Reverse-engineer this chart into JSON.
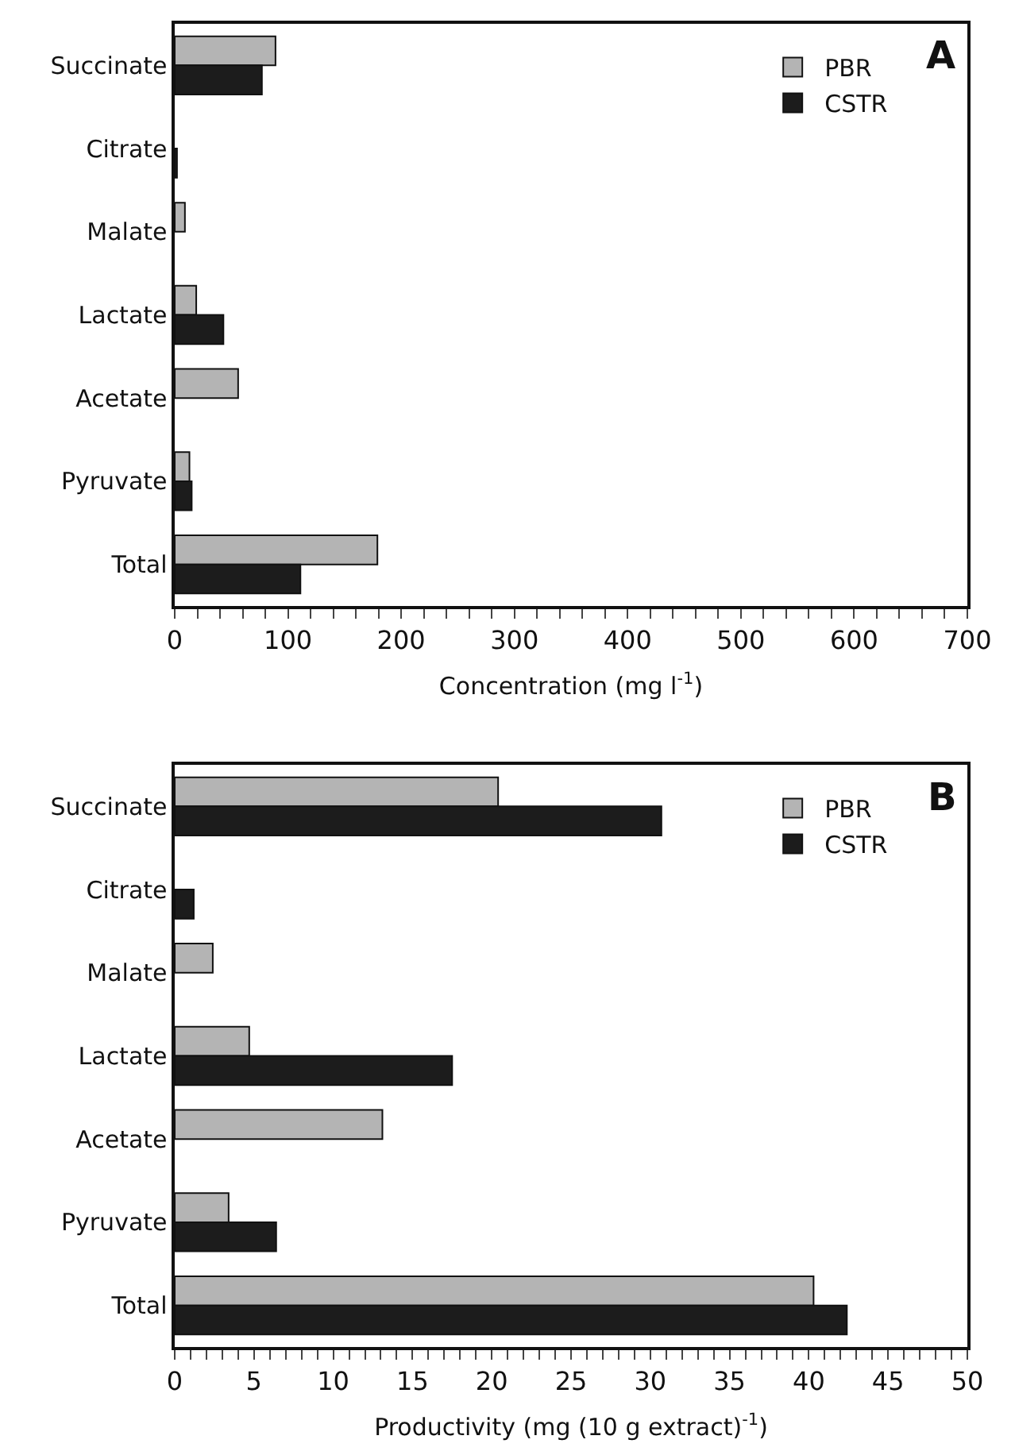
{
  "chart_data": [
    {
      "type": "bar",
      "orientation": "horizontal",
      "categories": [
        "Succinate",
        "Citrate",
        "Malate",
        "Lactate",
        "Acetate",
        "Pyruvate",
        "Total"
      ],
      "series": [
        {
          "name": "PBR",
          "color": "#b4b4b4",
          "values": [
            89,
            null,
            9,
            19,
            56,
            13,
            179
          ]
        },
        {
          "name": "CSTR",
          "color": "#1c1c1c",
          "values": [
            77,
            2,
            null,
            43,
            null,
            15,
            111
          ]
        }
      ],
      "xlabel": "Concentration (mg l$^{-1}$)",
      "xlim": [
        0,
        700
      ],
      "xticks": [
        0,
        {
          "value": 20,
          "label": null
        },
        {
          "value": 40,
          "label": null
        },
        {
          "value": 60,
          "label": null
        },
        {
          "value": 80,
          "label": null
        },
        100,
        {
          "value": 120,
          "label": null
        },
        {
          "value": 140,
          "label": null
        },
        {
          "value": 160,
          "label": null
        },
        {
          "value": 180,
          "label": null
        },
        200,
        {
          "value": 220,
          "label": null
        },
        {
          "value": 240,
          "label": null
        },
        {
          "value": 260,
          "label": null
        },
        {
          "value": 280,
          "label": null
        },
        300,
        {
          "value": 320,
          "label": null
        },
        {
          "value": 340,
          "label": null
        },
        {
          "value": 360,
          "label": null
        },
        {
          "value": 380,
          "label": null
        },
        400,
        {
          "value": 420,
          "label": null
        },
        {
          "value": 440,
          "label": null
        },
        {
          "value": 460,
          "label": null
        },
        {
          "value": 480,
          "label": null
        },
        500,
        {
          "value": 520,
          "label": null
        },
        {
          "value": 540,
          "label": null
        },
        {
          "value": 560,
          "label": null
        },
        {
          "value": 580,
          "label": null
        },
        600,
        {
          "value": 620,
          "label": null
        },
        {
          "value": 640,
          "label": null
        },
        {
          "value": 660,
          "label": null
        },
        {
          "value": 680,
          "label": null
        },
        700
      ],
      "legend": "top right",
      "annotations": [
        "A"
      ]
    },
    {
      "type": "bar",
      "orientation": "horizontal",
      "categories": [
        "Succinate",
        "Citrate",
        "Malate",
        "Lactate",
        "Acetate",
        "Pyruvate",
        "Total"
      ],
      "series": [
        {
          "name": "PBR",
          "color": "#b4b4b4",
          "values": [
            20.4,
            null,
            2.4,
            4.7,
            13.1,
            3.4,
            40.3
          ]
        },
        {
          "name": "CSTR",
          "color": "#1c1c1c",
          "values": [
            30.7,
            1.2,
            null,
            17.5,
            null,
            6.4,
            42.4
          ]
        }
      ],
      "xlabel": "Productivity (mg (10 g extract)$^{-1}$)",
      "xlim": [
        0,
        50
      ],
      "xticks": [
        0,
        {
          "value": 1,
          "label": null
        },
        {
          "value": 2,
          "label": null
        },
        {
          "value": 3,
          "label": null
        },
        {
          "value": 4,
          "label": null
        },
        5,
        {
          "value": 6,
          "label": null
        },
        {
          "value": 7,
          "label": null
        },
        {
          "value": 8,
          "label": null
        },
        {
          "value": 9,
          "label": null
        },
        10,
        {
          "value": 11,
          "label": null
        },
        {
          "value": 12,
          "label": null
        },
        {
          "value": 13,
          "label": null
        },
        {
          "value": 14,
          "label": null
        },
        15,
        {
          "value": 16,
          "label": null
        },
        {
          "value": 17,
          "label": null
        },
        {
          "value": 18,
          "label": null
        },
        {
          "value": 19,
          "label": null
        },
        20,
        {
          "value": 21,
          "label": null
        },
        {
          "value": 22,
          "label": null
        },
        {
          "value": 23,
          "label": null
        },
        {
          "value": 24,
          "label": null
        },
        25,
        {
          "value": 26,
          "label": null
        },
        {
          "value": 27,
          "label": null
        },
        {
          "value": 28,
          "label": null
        },
        {
          "value": 29,
          "label": null
        },
        30,
        {
          "value": 31,
          "label": null
        },
        {
          "value": 32,
          "label": null
        },
        {
          "value": 33,
          "label": null
        },
        {
          "value": 34,
          "label": null
        },
        35,
        {
          "value": 36,
          "label": null
        },
        {
          "value": 37,
          "label": null
        },
        {
          "value": 38,
          "label": null
        },
        {
          "value": 39,
          "label": null
        },
        40,
        {
          "value": 41,
          "label": null
        },
        {
          "value": 42,
          "label": null
        },
        {
          "value": 43,
          "label": null
        },
        {
          "value": 44,
          "label": null
        },
        45,
        {
          "value": 46,
          "label": null
        },
        {
          "value": 47,
          "label": null
        },
        {
          "value": 48,
          "label": null
        },
        {
          "value": 49,
          "label": null
        },
        50
      ],
      "legend": "top right",
      "annotations": [
        "B"
      ]
    }
  ]
}
